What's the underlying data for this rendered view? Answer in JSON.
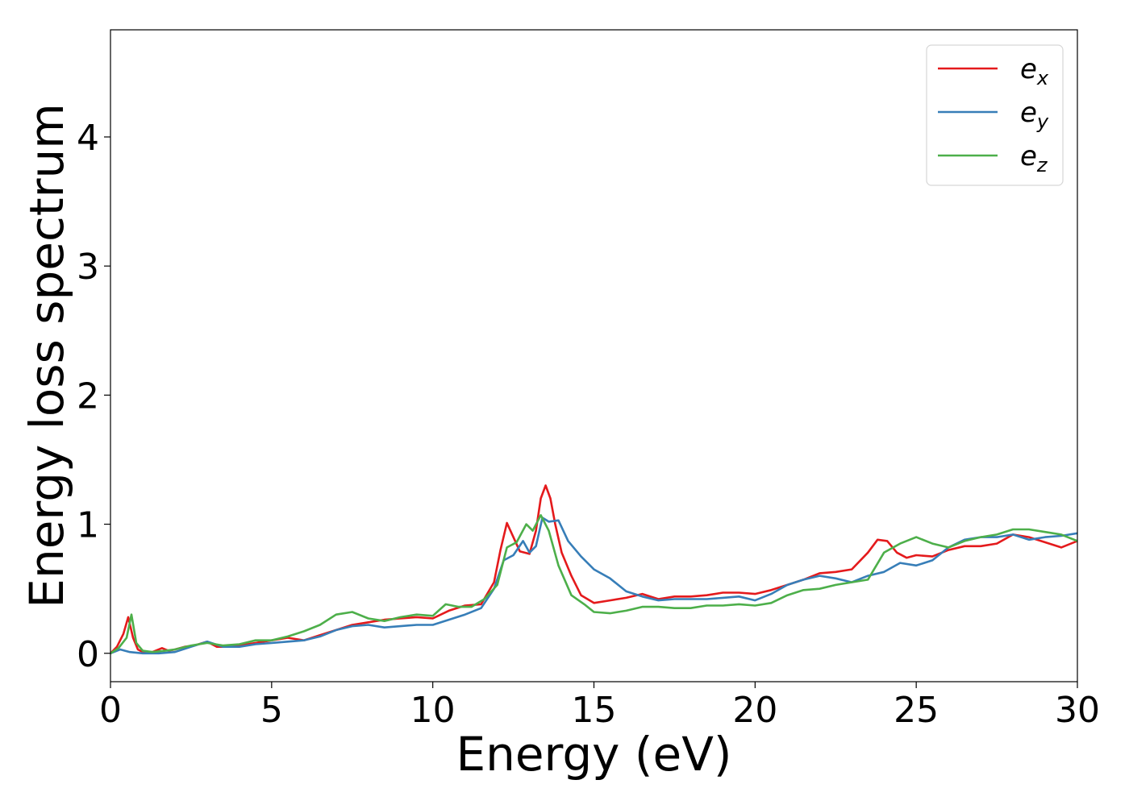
{
  "chart_data": {
    "type": "line",
    "title": "",
    "xlabel": "Energy (eV)",
    "ylabel": "Energy loss spectrum",
    "xlim": [
      0,
      30
    ],
    "ylim": [
      -0.22,
      4.83
    ],
    "xticks": [
      0,
      5,
      10,
      15,
      20,
      25,
      30
    ],
    "yticks": [
      0,
      1,
      2,
      3,
      4
    ],
    "grid": false,
    "legend_position": "top-right",
    "series": [
      {
        "name": "e_x",
        "legend_base": "e",
        "legend_sub": "x",
        "color": "#e41a1c",
        "x": [
          0,
          0.2,
          0.4,
          0.55,
          0.7,
          0.85,
          1.0,
          1.3,
          1.6,
          1.8,
          2.0,
          2.3,
          2.6,
          3.0,
          3.3,
          3.6,
          4.0,
          4.5,
          5.0,
          5.5,
          6.0,
          6.5,
          7.0,
          7.5,
          8.0,
          8.5,
          9.0,
          9.5,
          10.0,
          10.5,
          11.0,
          11.5,
          11.9,
          12.1,
          12.3,
          12.5,
          12.7,
          13.0,
          13.2,
          13.35,
          13.5,
          13.65,
          13.8,
          14.0,
          14.3,
          14.6,
          15.0,
          15.5,
          16.0,
          16.5,
          17.0,
          17.5,
          18.0,
          18.5,
          19.0,
          19.5,
          20.0,
          20.5,
          21.0,
          21.5,
          22.0,
          22.5,
          23.0,
          23.5,
          23.8,
          24.1,
          24.4,
          24.7,
          25.0,
          25.5,
          26.0,
          26.5,
          27.0,
          27.5,
          28.0,
          28.5,
          29.0,
          29.5,
          30.0
        ],
        "y": [
          0,
          0.05,
          0.15,
          0.28,
          0.12,
          0.03,
          0.01,
          0.01,
          0.04,
          0.02,
          0.03,
          0.05,
          0.06,
          0.09,
          0.05,
          0.05,
          0.06,
          0.08,
          0.1,
          0.12,
          0.1,
          0.14,
          0.18,
          0.22,
          0.24,
          0.26,
          0.27,
          0.28,
          0.27,
          0.33,
          0.37,
          0.38,
          0.55,
          0.8,
          1.01,
          0.9,
          0.79,
          0.77,
          0.95,
          1.2,
          1.3,
          1.2,
          1.0,
          0.78,
          0.6,
          0.45,
          0.39,
          0.41,
          0.43,
          0.46,
          0.42,
          0.44,
          0.44,
          0.45,
          0.47,
          0.47,
          0.46,
          0.49,
          0.53,
          0.57,
          0.62,
          0.63,
          0.65,
          0.78,
          0.88,
          0.87,
          0.78,
          0.74,
          0.76,
          0.75,
          0.8,
          0.83,
          0.83,
          0.85,
          0.92,
          0.9,
          0.86,
          0.82,
          0.87
        ]
      },
      {
        "name": "e_y",
        "legend_base": "e",
        "legend_sub": "y",
        "color": "#377eb8",
        "x": [
          0,
          0.3,
          0.6,
          1.0,
          1.5,
          2.0,
          2.5,
          3.0,
          3.5,
          4.0,
          4.5,
          5.0,
          5.5,
          6.0,
          6.5,
          7.0,
          7.5,
          8.0,
          8.5,
          9.0,
          9.5,
          10.0,
          10.5,
          11.0,
          11.5,
          11.9,
          12.2,
          12.5,
          12.8,
          13.0,
          13.2,
          13.4,
          13.6,
          13.9,
          14.2,
          14.6,
          15.0,
          15.5,
          16.0,
          16.5,
          17.0,
          17.5,
          18.0,
          18.5,
          19.0,
          19.5,
          20.0,
          20.5,
          21.0,
          21.5,
          22.0,
          22.5,
          23.0,
          23.5,
          24.0,
          24.5,
          25.0,
          25.5,
          26.0,
          26.5,
          27.0,
          27.5,
          28.0,
          28.5,
          29.0,
          29.5,
          30.0
        ],
        "y": [
          0,
          0.03,
          0.01,
          0.0,
          0.0,
          0.01,
          0.05,
          0.09,
          0.05,
          0.05,
          0.07,
          0.08,
          0.09,
          0.1,
          0.13,
          0.18,
          0.21,
          0.22,
          0.2,
          0.21,
          0.22,
          0.22,
          0.26,
          0.3,
          0.35,
          0.5,
          0.72,
          0.76,
          0.87,
          0.78,
          0.83,
          1.05,
          1.02,
          1.03,
          0.87,
          0.75,
          0.65,
          0.58,
          0.48,
          0.44,
          0.41,
          0.42,
          0.42,
          0.42,
          0.43,
          0.44,
          0.41,
          0.46,
          0.53,
          0.57,
          0.6,
          0.58,
          0.55,
          0.6,
          0.63,
          0.7,
          0.68,
          0.72,
          0.82,
          0.88,
          0.9,
          0.9,
          0.92,
          0.88,
          0.9,
          0.91,
          0.93
        ]
      },
      {
        "name": "e_z",
        "legend_base": "e",
        "legend_sub": "z",
        "color": "#4daf4a",
        "x": [
          0,
          0.25,
          0.5,
          0.65,
          0.8,
          1.0,
          1.3,
          1.7,
          2.0,
          2.5,
          3.0,
          3.5,
          4.0,
          4.5,
          5.0,
          5.5,
          6.0,
          6.5,
          7.0,
          7.5,
          8.0,
          8.5,
          9.0,
          9.5,
          10.0,
          10.4,
          10.8,
          11.2,
          11.6,
          12.0,
          12.3,
          12.6,
          12.9,
          13.1,
          13.35,
          13.6,
          13.9,
          14.3,
          14.7,
          15.0,
          15.5,
          16.0,
          16.5,
          17.0,
          17.5,
          18.0,
          18.5,
          19.0,
          19.5,
          20.0,
          20.5,
          21.0,
          21.5,
          22.0,
          22.5,
          23.0,
          23.5,
          24.0,
          24.5,
          25.0,
          25.5,
          26.0,
          26.5,
          27.0,
          27.5,
          28.0,
          28.5,
          29.0,
          29.5,
          30.0
        ],
        "y": [
          0,
          0.04,
          0.12,
          0.3,
          0.08,
          0.02,
          0.01,
          0.02,
          0.03,
          0.06,
          0.08,
          0.06,
          0.07,
          0.1,
          0.1,
          0.13,
          0.17,
          0.22,
          0.3,
          0.32,
          0.27,
          0.25,
          0.28,
          0.3,
          0.29,
          0.38,
          0.36,
          0.36,
          0.42,
          0.53,
          0.82,
          0.86,
          1.0,
          0.95,
          1.07,
          0.95,
          0.68,
          0.45,
          0.38,
          0.32,
          0.31,
          0.33,
          0.36,
          0.36,
          0.35,
          0.35,
          0.37,
          0.37,
          0.38,
          0.37,
          0.39,
          0.45,
          0.49,
          0.5,
          0.53,
          0.55,
          0.57,
          0.78,
          0.85,
          0.9,
          0.85,
          0.82,
          0.87,
          0.9,
          0.92,
          0.96,
          0.96,
          0.94,
          0.92,
          0.87
        ]
      }
    ]
  }
}
